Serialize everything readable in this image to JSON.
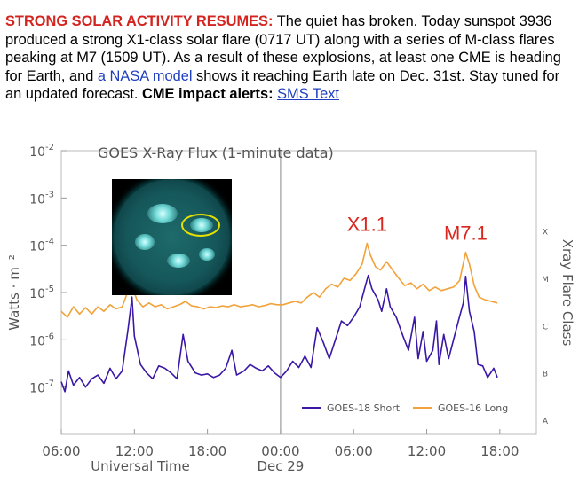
{
  "article": {
    "headline": "STRONG SOLAR ACTIVITY RESUMES:",
    "text1": " The quiet has broken. Today sunspot 3936 produced a strong X1-class solar flare (0717 UT) along with a series of M-class flares peaking at M7 (1509 UT). As a result of these explosions, at least one CME is heading for Earth, and ",
    "link_nasa": "a NASA model",
    "text2": " shows it reaching Earth late on Dec. 31st. Stay tuned for an updated forecast. ",
    "bold_alerts": "CME impact alerts:",
    "space": " ",
    "link_sms": "SMS Text"
  },
  "chart_data": {
    "type": "line",
    "title": "GOES X-Ray Flux (1-minute data)",
    "xlabel": "Universal Time",
    "ylabel": "Watts · m⁻²",
    "right_axis_label": "Xray Flare Class",
    "date_label": "Dec 29",
    "y_scale": "log",
    "ylim": [
      1e-08,
      0.01
    ],
    "y_ticks": [
      {
        "base": "10",
        "exp": "-2",
        "value": 0.01
      },
      {
        "base": "10",
        "exp": "-3",
        "value": 0.001
      },
      {
        "base": "10",
        "exp": "-4",
        "value": 0.0001
      },
      {
        "base": "10",
        "exp": "-5",
        "value": 1e-05
      },
      {
        "base": "10",
        "exp": "-6",
        "value": 1e-06
      },
      {
        "base": "10",
        "exp": "-7",
        "value": 1e-07
      }
    ],
    "x_ticks": [
      {
        "label": "06:00",
        "hour": 6
      },
      {
        "label": "12:00",
        "hour": 12
      },
      {
        "label": "18:00",
        "hour": 18
      },
      {
        "label": "00:00",
        "hour": 24
      },
      {
        "label": "06:00",
        "hour": 30
      },
      {
        "label": "12:00",
        "hour": 36
      },
      {
        "label": "18:00",
        "hour": 42
      }
    ],
    "xlim_hours": [
      6,
      45
    ],
    "class_labels": [
      {
        "label": "X",
        "value": 0.0002
      },
      {
        "label": "M",
        "value": 2e-05
      },
      {
        "label": "C",
        "value": 2e-06
      },
      {
        "label": "B",
        "value": 2e-07
      },
      {
        "label": "A",
        "value": 2e-08
      }
    ],
    "annotations": [
      {
        "text": "X1.1",
        "hour": 31.1,
        "value": 0.00011,
        "color": "#d9261e"
      },
      {
        "text": "M7.1",
        "hour": 39.2,
        "value": 7.1e-05,
        "color": "#d9261e"
      }
    ],
    "series": [
      {
        "name": "GOES-18 Short",
        "color": "#3a17a6",
        "points": [
          [
            6.0,
            1.3e-07
          ],
          [
            6.3,
            8e-08
          ],
          [
            6.6,
            2.2e-07
          ],
          [
            7.0,
            1.1e-07
          ],
          [
            7.5,
            1.6e-07
          ],
          [
            8.0,
            1e-07
          ],
          [
            8.5,
            1.5e-07
          ],
          [
            9.0,
            1.8e-07
          ],
          [
            9.5,
            1.2e-07
          ],
          [
            10.0,
            2.5e-07
          ],
          [
            10.5,
            1.5e-07
          ],
          [
            11.0,
            2.2e-07
          ],
          [
            11.5,
            1.8e-06
          ],
          [
            11.8,
            8e-06
          ],
          [
            12.0,
            1.2e-06
          ],
          [
            12.5,
            3e-07
          ],
          [
            13.0,
            2e-07
          ],
          [
            13.5,
            1.5e-07
          ],
          [
            14.0,
            2.8e-07
          ],
          [
            14.5,
            2.5e-07
          ],
          [
            15.0,
            2e-07
          ],
          [
            15.5,
            1.5e-07
          ],
          [
            16.0,
            1.3e-06
          ],
          [
            16.4,
            3.5e-07
          ],
          [
            17.0,
            2e-07
          ],
          [
            17.5,
            1.8e-07
          ],
          [
            18.0,
            1.9e-07
          ],
          [
            18.5,
            1.6e-07
          ],
          [
            19.0,
            1.8e-07
          ],
          [
            19.5,
            2.5e-07
          ],
          [
            20.0,
            6e-07
          ],
          [
            20.4,
            1.8e-07
          ],
          [
            21.0,
            2.2e-07
          ],
          [
            21.5,
            3e-07
          ],
          [
            22.0,
            2.5e-07
          ],
          [
            22.5,
            2.2e-07
          ],
          [
            23.0,
            2.8e-07
          ],
          [
            23.5,
            2e-07
          ],
          [
            24.0,
            1.6e-07
          ],
          [
            24.5,
            2.2e-07
          ],
          [
            25.0,
            3.5e-07
          ],
          [
            25.5,
            2.6e-07
          ],
          [
            26.0,
            4.5e-07
          ],
          [
            26.5,
            2.6e-07
          ],
          [
            27.0,
            1.8e-06
          ],
          [
            27.5,
            9e-07
          ],
          [
            28.0,
            4e-07
          ],
          [
            28.5,
            1e-06
          ],
          [
            29.0,
            2.5e-06
          ],
          [
            29.5,
            2e-06
          ],
          [
            30.0,
            3e-06
          ],
          [
            30.5,
            5e-06
          ],
          [
            31.0,
            1.5e-05
          ],
          [
            31.2,
            2.3e-05
          ],
          [
            31.5,
            1.2e-05
          ],
          [
            32.0,
            7e-06
          ],
          [
            32.3,
            4e-06
          ],
          [
            32.7,
            1.2e-05
          ],
          [
            33.0,
            5e-06
          ],
          [
            33.5,
            3e-06
          ],
          [
            34.0,
            1.3e-06
          ],
          [
            34.5,
            6e-07
          ],
          [
            35.0,
            3e-06
          ],
          [
            35.3,
            4e-07
          ],
          [
            35.7,
            1.5e-06
          ],
          [
            36.0,
            3.5e-07
          ],
          [
            36.5,
            6e-07
          ],
          [
            36.8,
            2.5e-06
          ],
          [
            37.0,
            3e-07
          ],
          [
            37.4,
            1.3e-06
          ],
          [
            37.8,
            4e-07
          ],
          [
            38.2,
            1e-06
          ],
          [
            38.6,
            2.5e-06
          ],
          [
            39.0,
            6e-06
          ],
          [
            39.2,
            2.2e-05
          ],
          [
            39.5,
            4e-06
          ],
          [
            39.9,
            1.5e-06
          ],
          [
            40.2,
            3e-07
          ],
          [
            40.6,
            2.8e-07
          ],
          [
            41.0,
            1.6e-07
          ],
          [
            41.5,
            2.5e-07
          ],
          [
            41.8,
            1.6e-07
          ]
        ]
      },
      {
        "name": "GOES-16 Long",
        "color": "#f2a23a",
        "points": [
          [
            6.0,
            4e-06
          ],
          [
            6.5,
            3e-06
          ],
          [
            7.0,
            5e-06
          ],
          [
            7.5,
            3.5e-06
          ],
          [
            8.0,
            4.8e-06
          ],
          [
            8.5,
            3.5e-06
          ],
          [
            9.0,
            5e-06
          ],
          [
            9.5,
            4e-06
          ],
          [
            10.0,
            5.5e-06
          ],
          [
            10.5,
            4.5e-06
          ],
          [
            11.0,
            5e-06
          ],
          [
            11.5,
            1.1e-05
          ],
          [
            11.8,
            1.4e-05
          ],
          [
            12.2,
            7e-06
          ],
          [
            12.7,
            5e-06
          ],
          [
            13.2,
            6e-06
          ],
          [
            13.7,
            5e-06
          ],
          [
            14.2,
            5.5e-06
          ],
          [
            14.7,
            4.5e-06
          ],
          [
            15.2,
            5e-06
          ],
          [
            15.7,
            5.5e-06
          ],
          [
            16.2,
            6.5e-06
          ],
          [
            16.7,
            5.2e-06
          ],
          [
            17.2,
            5e-06
          ],
          [
            17.7,
            4.5e-06
          ],
          [
            18.2,
            5e-06
          ],
          [
            18.7,
            4.8e-06
          ],
          [
            19.2,
            5.2e-06
          ],
          [
            19.7,
            5e-06
          ],
          [
            20.2,
            5.5e-06
          ],
          [
            20.7,
            5e-06
          ],
          [
            21.2,
            5.2e-06
          ],
          [
            21.7,
            5.5e-06
          ],
          [
            22.2,
            5e-06
          ],
          [
            22.7,
            5.3e-06
          ],
          [
            23.2,
            5.8e-06
          ],
          [
            23.7,
            5.5e-06
          ],
          [
            24.2,
            5.5e-06
          ],
          [
            24.7,
            6e-06
          ],
          [
            25.2,
            6.5e-06
          ],
          [
            25.7,
            6e-06
          ],
          [
            26.2,
            8e-06
          ],
          [
            26.7,
            1e-05
          ],
          [
            27.2,
            8e-06
          ],
          [
            27.7,
            1.2e-05
          ],
          [
            28.2,
            1.5e-05
          ],
          [
            28.7,
            1.3e-05
          ],
          [
            29.2,
            2e-05
          ],
          [
            29.7,
            1.8e-05
          ],
          [
            30.2,
            2.5e-05
          ],
          [
            30.7,
            4e-05
          ],
          [
            31.1,
            0.00011
          ],
          [
            31.4,
            6e-05
          ],
          [
            31.8,
            3.5e-05
          ],
          [
            32.2,
            3e-05
          ],
          [
            32.7,
            4.5e-05
          ],
          [
            33.2,
            3e-05
          ],
          [
            33.7,
            2e-05
          ],
          [
            34.2,
            1.4e-05
          ],
          [
            34.7,
            1.6e-05
          ],
          [
            35.2,
            1.2e-05
          ],
          [
            35.7,
            1.5e-05
          ],
          [
            36.2,
            1.1e-05
          ],
          [
            36.7,
            1.3e-05
          ],
          [
            37.2,
            1.1e-05
          ],
          [
            37.7,
            1.2e-05
          ],
          [
            38.2,
            1.3e-05
          ],
          [
            38.7,
            1.8e-05
          ],
          [
            39.2,
            7.1e-05
          ],
          [
            39.5,
            4e-05
          ],
          [
            39.9,
            1.4e-05
          ],
          [
            40.3,
            8e-06
          ],
          [
            40.8,
            7e-06
          ],
          [
            41.3,
            6.5e-06
          ],
          [
            41.8,
            6e-06
          ]
        ]
      }
    ],
    "legend": [
      {
        "name": "GOES-18 Short",
        "color": "#3a17a6"
      },
      {
        "name": "GOES-16 Long",
        "color": "#f2a23a"
      }
    ],
    "legend_position": "bottom-right",
    "inset_image": "solar-disk-sdo-image-with-yellow-ellipse"
  }
}
